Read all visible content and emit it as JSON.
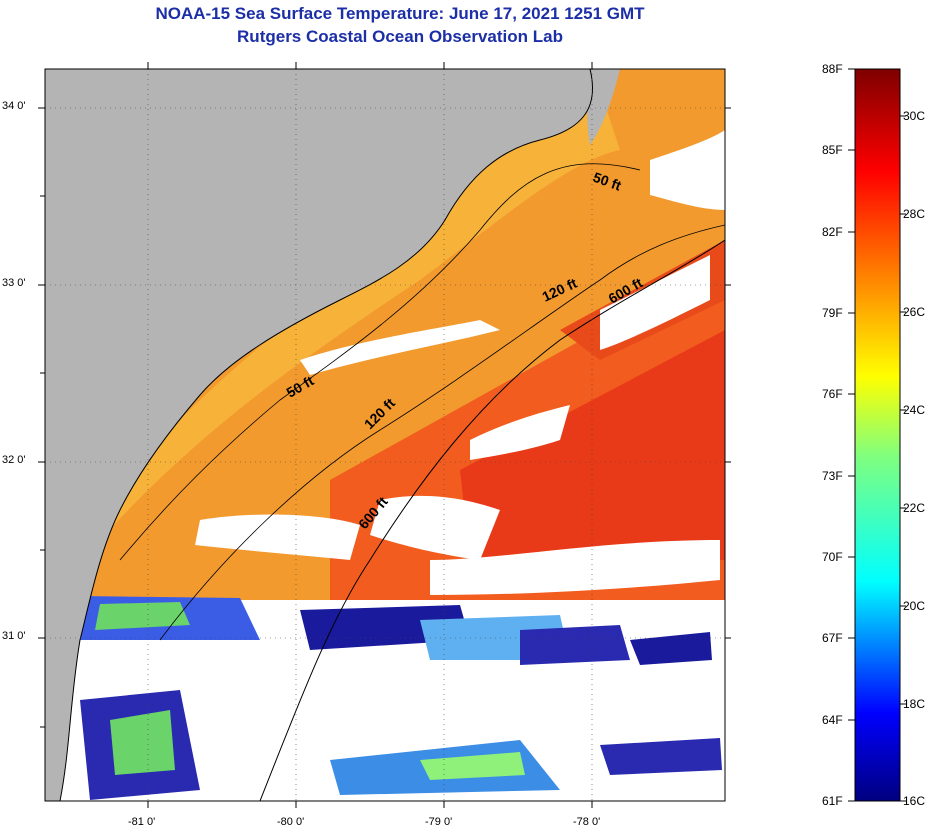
{
  "title": {
    "line1": "NOAA-15 Sea Surface Temperature:  June 17, 2021 1251 GMT",
    "line2": "Rutgers Coastal Ocean Observation Lab"
  },
  "map": {
    "latitude_labels": [
      "34 0'",
      "33 0'",
      "32 0'",
      "31 0'"
    ],
    "longitude_labels": [
      "-81 0'",
      "-80 0'",
      "-79 0'",
      "-78 0'"
    ],
    "contour_labels": [
      {
        "id": "iso-50-north",
        "text": "50 ft"
      },
      {
        "id": "iso-50-south",
        "text": "50 ft"
      },
      {
        "id": "iso-120-north",
        "text": "120 ft"
      },
      {
        "id": "iso-120-south",
        "text": "120 ft"
      },
      {
        "id": "iso-600-north",
        "text": "600 ft"
      },
      {
        "id": "iso-600-south",
        "text": "600 ft"
      }
    ]
  },
  "colorbar": {
    "fahrenheit_labels": [
      "88F",
      "85F",
      "82F",
      "79F",
      "76F",
      "73F",
      "70F",
      "67F",
      "64F",
      "61F"
    ],
    "celsius_labels": [
      "30C",
      "28C",
      "26C",
      "24C",
      "22C",
      "20C",
      "18C",
      "16C"
    ]
  },
  "colors": {
    "land": "#b4b4b4",
    "cloud": "#ffffff",
    "sst_warm": "#f5a623",
    "sst_hot": "#e8381a",
    "sst_cold": "#1a1a9c",
    "title": "#1c2fa6"
  }
}
